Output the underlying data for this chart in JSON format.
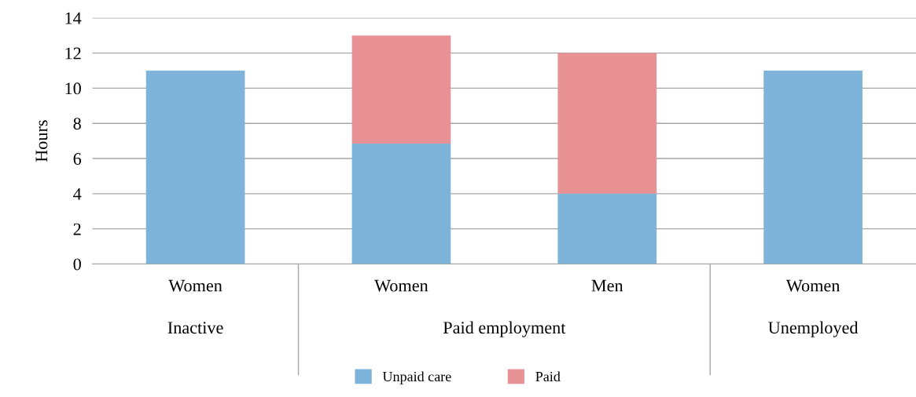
{
  "chart_data": {
    "type": "bar",
    "stacked": true,
    "ylabel": "Hours",
    "categories": [
      "Women",
      "Women",
      "Men",
      "Women"
    ],
    "series": [
      {
        "name": "Unpaid care",
        "color": "#7eb3da",
        "values": [
          11,
          6.85,
          4,
          11
        ]
      },
      {
        "name": "Paid",
        "color": "#e89296",
        "values": [
          null,
          6.15,
          8,
          null
        ]
      }
    ],
    "ylim": [
      0,
      14
    ],
    "yticks": [
      0,
      2,
      4,
      6,
      8,
      10,
      12,
      14
    ],
    "grid": "y",
    "legend": "bottom",
    "annotations": [
      "Inactive",
      "Paid employment",
      "Unemployed"
    ]
  }
}
